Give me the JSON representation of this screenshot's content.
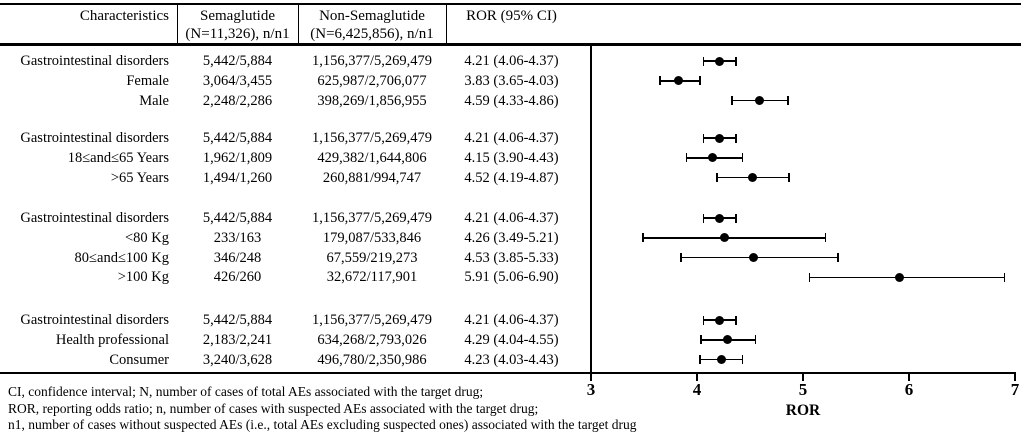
{
  "colors": {
    "foreground": "#000000",
    "background": "#ffffff"
  },
  "header": {
    "col1": "Characteristics",
    "col2_line1": "Semaglutide",
    "col2_line2": "(N=11,326), n/n1",
    "col3_line1": "Non-Semaglutide",
    "col3_line2": "(N=6,425,856), n/n1",
    "col4": "ROR (95% CI)"
  },
  "chart_data": {
    "type": "scatter",
    "subtype": "forest-plot",
    "title": "",
    "xlabel": "ROR",
    "xlim": [
      3,
      7
    ],
    "xticks": [
      3,
      4,
      5,
      6,
      7
    ],
    "legend": "none",
    "grid": false,
    "groups": [
      {
        "rows": [
          {
            "label": "Gastrointestinal disorders",
            "semaglutide": "5,442/5,884",
            "non_semaglutide": "1,156,377/5,269,479",
            "ror_text": "4.21 (4.06-4.37)",
            "estimate": 4.21,
            "ci_low": 4.06,
            "ci_high": 4.37
          },
          {
            "label": "Female",
            "semaglutide": "3,064/3,455",
            "non_semaglutide": "625,987/2,706,077",
            "ror_text": "3.83 (3.65-4.03)",
            "estimate": 3.83,
            "ci_low": 3.65,
            "ci_high": 4.03
          },
          {
            "label": "Male",
            "semaglutide": "2,248/2,286",
            "non_semaglutide": "398,269/1,856,955",
            "ror_text": "4.59 (4.33-4.86)",
            "estimate": 4.59,
            "ci_low": 4.33,
            "ci_high": 4.86
          }
        ]
      },
      {
        "rows": [
          {
            "label": "Gastrointestinal disorders",
            "semaglutide": "5,442/5,884",
            "non_semaglutide": "1,156,377/5,269,479",
            "ror_text": "4.21 (4.06-4.37)",
            "estimate": 4.21,
            "ci_low": 4.06,
            "ci_high": 4.37
          },
          {
            "label": "18≤and≤65 Years",
            "semaglutide": "1,962/1,809",
            "non_semaglutide": "429,382/1,644,806",
            "ror_text": "4.15 (3.90-4.43)",
            "estimate": 4.15,
            "ci_low": 3.9,
            "ci_high": 4.43
          },
          {
            "label": ">65 Years",
            "semaglutide": "1,494/1,260",
            "non_semaglutide": "260,881/994,747",
            "ror_text": "4.52 (4.19-4.87)",
            "estimate": 4.52,
            "ci_low": 4.19,
            "ci_high": 4.87
          }
        ]
      },
      {
        "rows": [
          {
            "label": "Gastrointestinal disorders",
            "semaglutide": "5,442/5,884",
            "non_semaglutide": "1,156,377/5,269,479",
            "ror_text": "4.21 (4.06-4.37)",
            "estimate": 4.21,
            "ci_low": 4.06,
            "ci_high": 4.37
          },
          {
            "label": "<80 Kg",
            "semaglutide": "233/163",
            "non_semaglutide": "179,087/533,846",
            "ror_text": "4.26 (3.49-5.21)",
            "estimate": 4.26,
            "ci_low": 3.49,
            "ci_high": 5.21
          },
          {
            "label": "80≤and≤100 Kg",
            "semaglutide": "346/248",
            "non_semaglutide": "67,559/219,273",
            "ror_text": "4.53 (3.85-5.33)",
            "estimate": 4.53,
            "ci_low": 3.85,
            "ci_high": 5.33
          },
          {
            "label": ">100 Kg",
            "semaglutide": "426/260",
            "non_semaglutide": "32,672/117,901",
            "ror_text": "5.91 (5.06-6.90)",
            "estimate": 5.91,
            "ci_low": 5.06,
            "ci_high": 6.9
          }
        ]
      },
      {
        "rows": [
          {
            "label": "Gastrointestinal disorders",
            "semaglutide": "5,442/5,884",
            "non_semaglutide": "1,156,377/5,269,479",
            "ror_text": "4.21 (4.06-4.37)",
            "estimate": 4.21,
            "ci_low": 4.06,
            "ci_high": 4.37
          },
          {
            "label": "Health professional",
            "semaglutide": "2,183/2,241",
            "non_semaglutide": "634,268/2,793,026",
            "ror_text": "4.29 (4.04-4.55)",
            "estimate": 4.29,
            "ci_low": 4.04,
            "ci_high": 4.55
          },
          {
            "label": "Consumer",
            "semaglutide": "3,240/3,628",
            "non_semaglutide": "496,780/2,350,986",
            "ror_text": "4.23 (4.03-4.43)",
            "estimate": 4.23,
            "ci_low": 4.03,
            "ci_high": 4.43
          }
        ]
      }
    ]
  },
  "footnotes": [
    "CI, confidence interval; N, number of cases of total AEs associated with the target drug;",
    "ROR, reporting odds ratio; n, number of cases with suspected AEs associated with the target drug;",
    "n1, number of cases without suspected AEs (i.e., total AEs excluding suspected ones) associated with the target drug"
  ]
}
